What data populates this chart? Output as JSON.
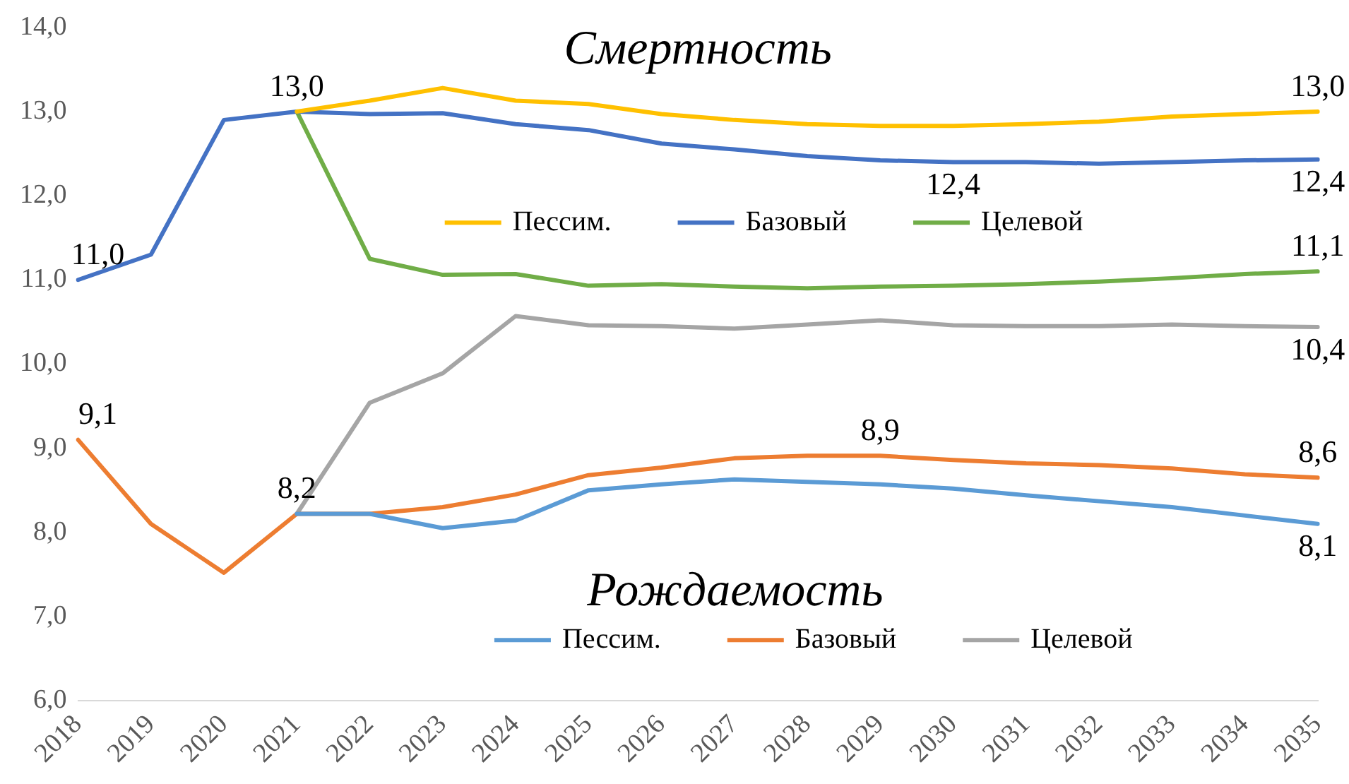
{
  "chart_data": {
    "type": "line",
    "categories": [
      "2018",
      "2019",
      "2020",
      "2021",
      "2022",
      "2023",
      "2024",
      "2025",
      "2026",
      "2027",
      "2028",
      "2029",
      "2030",
      "2031",
      "2032",
      "2033",
      "2034",
      "2035"
    ],
    "ylim": [
      6,
      14
    ],
    "yticks": [
      {
        "value": 6,
        "label": "6,0"
      },
      {
        "value": 7,
        "label": "7,0"
      },
      {
        "value": 8,
        "label": "8,0"
      },
      {
        "value": 9,
        "label": "9,0"
      },
      {
        "value": 10,
        "label": "10,0"
      },
      {
        "value": 11,
        "label": "11,0"
      },
      {
        "value": 12,
        "label": "12,0"
      },
      {
        "value": 13,
        "label": "13,0"
      },
      {
        "value": 14,
        "label": "14,0"
      }
    ],
    "grid": false,
    "legend": "center",
    "marker": "none",
    "line_style": "solid",
    "annotations": [
      "Смертность",
      "Рождаемость"
    ],
    "series": [
      {
        "name": "Пессим.",
        "color": "#ffc000",
        "values": [
          null,
          null,
          null,
          13.0,
          13.13,
          13.28,
          13.13,
          13.09,
          12.97,
          12.9,
          12.85,
          12.83,
          12.83,
          12.85,
          12.88,
          12.94,
          12.97,
          13.0
        ],
        "value_labels": [
          null,
          null,
          null,
          null,
          null,
          null,
          null,
          null,
          null,
          null,
          null,
          null,
          null,
          null,
          null,
          null,
          null,
          "13,0"
        ]
      },
      {
        "name": "Базовый",
        "color": "#4472c4",
        "values": [
          11.0,
          11.3,
          12.9,
          13.0,
          12.97,
          12.98,
          12.85,
          12.78,
          12.62,
          12.55,
          12.47,
          12.42,
          12.4,
          12.4,
          12.38,
          12.4,
          12.42,
          12.43
        ],
        "value_labels": [
          "11,0",
          null,
          null,
          "13,0",
          null,
          null,
          null,
          null,
          null,
          null,
          null,
          null,
          "12,4",
          null,
          null,
          null,
          null,
          "12,4"
        ]
      },
      {
        "name": "Целевой",
        "color": "#70ad47",
        "values": [
          null,
          null,
          null,
          13.0,
          11.25,
          11.06,
          11.07,
          10.93,
          10.95,
          10.92,
          10.9,
          10.92,
          10.93,
          10.95,
          10.98,
          11.02,
          11.07,
          11.1
        ],
        "value_labels": [
          null,
          null,
          null,
          null,
          null,
          null,
          null,
          null,
          null,
          null,
          null,
          null,
          null,
          null,
          null,
          null,
          null,
          "11,1"
        ]
      },
      {
        "name": "Пессим.",
        "color": "#5b9bd5",
        "values": [
          null,
          null,
          null,
          8.22,
          8.22,
          8.05,
          8.14,
          8.5,
          8.57,
          8.63,
          8.6,
          8.57,
          8.52,
          8.44,
          8.37,
          8.3,
          8.2,
          8.1
        ],
        "value_labels": [
          null,
          null,
          null,
          null,
          null,
          null,
          null,
          null,
          null,
          null,
          null,
          null,
          null,
          null,
          null,
          null,
          null,
          "8,1"
        ]
      },
      {
        "name": "Базовый",
        "color": "#ed7d31",
        "values": [
          9.1,
          8.1,
          7.52,
          8.22,
          8.22,
          8.3,
          8.45,
          8.68,
          8.77,
          8.88,
          8.91,
          8.91,
          8.86,
          8.82,
          8.8,
          8.76,
          8.69,
          8.65
        ],
        "value_labels": [
          "9,1",
          null,
          null,
          "8,2",
          null,
          null,
          null,
          null,
          null,
          null,
          null,
          "8,9",
          null,
          null,
          null,
          null,
          null,
          "8,6"
        ]
      },
      {
        "name": "Целевой",
        "color": "#a5a5a5",
        "values": [
          null,
          null,
          null,
          8.22,
          9.54,
          9.89,
          10.57,
          10.46,
          10.45,
          10.42,
          10.47,
          10.52,
          10.46,
          10.45,
          10.45,
          10.47,
          10.45,
          10.44
        ],
        "value_labels": [
          null,
          null,
          null,
          null,
          null,
          null,
          null,
          null,
          null,
          null,
          null,
          null,
          null,
          null,
          null,
          null,
          null,
          "10,4"
        ]
      }
    ]
  }
}
